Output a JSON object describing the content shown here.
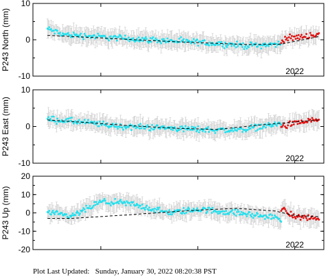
{
  "chart_data": [
    {
      "type": "scatter",
      "ylabel": "P243 North (mm)",
      "ylim": [
        -10,
        10
      ],
      "yticks": [
        -10,
        0,
        10
      ],
      "xlim": [
        2019.3,
        2022.3
      ],
      "xtick_label": "2022",
      "xtick_value": 2022.0,
      "series": [
        {
          "values_desc": "cyan points with grey error bars",
          "x_start": 2019.45,
          "x_end": 2021.86,
          "trend": [
            [
              2019.45,
              3.0
            ],
            [
              2019.6,
              1.5
            ],
            [
              2020.0,
              0.8
            ],
            [
              2020.5,
              0.0
            ],
            [
              2021.0,
              -0.7
            ],
            [
              2021.5,
              -1.6
            ],
            [
              2021.86,
              -1.2
            ]
          ]
        },
        {
          "values_desc": "red points (recent)",
          "x_start": 2021.86,
          "x_end": 2022.25,
          "trend": [
            [
              2021.86,
              0.0
            ],
            [
              2022.0,
              0.6
            ],
            [
              2022.25,
              1.5
            ]
          ]
        }
      ],
      "model": [
        [
          2019.45,
          1.2
        ],
        [
          2020.0,
          0.5
        ],
        [
          2020.5,
          -0.2
        ],
        [
          2021.0,
          -0.8
        ],
        [
          2021.5,
          -1.3
        ],
        [
          2021.86,
          -1.2
        ],
        [
          2022.25,
          0.9
        ]
      ]
    },
    {
      "type": "scatter",
      "ylabel": "P243 East (mm)",
      "ylim": [
        -10,
        10
      ],
      "yticks": [
        -10,
        0,
        10
      ],
      "xlim": [
        2019.3,
        2022.3
      ],
      "xtick_label": "2022",
      "xtick_value": 2022.0,
      "series": [
        {
          "values_desc": "cyan points with grey error bars",
          "x_start": 2019.45,
          "x_end": 2021.86,
          "trend": [
            [
              2019.45,
              2.0
            ],
            [
              2019.8,
              1.2
            ],
            [
              2020.2,
              0.0
            ],
            [
              2020.6,
              -0.3
            ],
            [
              2021.0,
              -0.8
            ],
            [
              2021.4,
              -1.0
            ],
            [
              2021.86,
              0.8
            ]
          ]
        },
        {
          "values_desc": "red points (recent)",
          "x_start": 2021.86,
          "x_end": 2022.25,
          "trend": [
            [
              2021.86,
              0.0
            ],
            [
              2022.0,
              0.8
            ],
            [
              2022.25,
              2.0
            ]
          ]
        }
      ],
      "model": [
        [
          2019.45,
          1.8
        ],
        [
          2019.9,
          1.0
        ],
        [
          2020.3,
          0.2
        ],
        [
          2020.8,
          -0.5
        ],
        [
          2021.2,
          -0.8
        ],
        [
          2021.6,
          0.3
        ],
        [
          2022.25,
          1.8
        ]
      ]
    },
    {
      "type": "scatter",
      "ylabel": "P243 Up (mm)",
      "ylim": [
        -20,
        20
      ],
      "yticks": [
        -20,
        -10,
        0,
        10,
        20
      ],
      "xlim": [
        2019.3,
        2022.3
      ],
      "xtick_label": "2022",
      "xtick_value": 2022.0,
      "series": [
        {
          "values_desc": "cyan points with grey error bars",
          "x_start": 2019.45,
          "x_end": 2021.86,
          "trend": [
            [
              2019.45,
              0.0
            ],
            [
              2019.7,
              -2.0
            ],
            [
              2020.0,
              6.0
            ],
            [
              2020.3,
              5.0
            ],
            [
              2020.7,
              0.0
            ],
            [
              2021.0,
              2.0
            ],
            [
              2021.4,
              0.0
            ],
            [
              2021.86,
              -3.0
            ]
          ]
        },
        {
          "values_desc": "red points (recent)",
          "x_start": 2021.86,
          "x_end": 2022.25,
          "trend": [
            [
              2021.86,
              2.0
            ],
            [
              2022.0,
              -2.0
            ],
            [
              2022.25,
              -3.0
            ]
          ]
        }
      ],
      "model": [
        [
          2019.45,
          -3.0
        ],
        [
          2019.7,
          -3.0
        ],
        [
          2020.0,
          -2.0
        ],
        [
          2020.3,
          -1.0
        ],
        [
          2020.7,
          0.5
        ],
        [
          2021.0,
          1.5
        ],
        [
          2021.4,
          2.5
        ],
        [
          2021.8,
          1.0
        ],
        [
          2022.0,
          -1.5
        ],
        [
          2022.25,
          -2.0
        ]
      ]
    }
  ],
  "footer": {
    "label": "Plot Last Updated:",
    "value": "Sunday, January 30, 2022 08:20:38 PST"
  },
  "colors": {
    "main_points": "#22e0ee",
    "recent_points": "#e01010",
    "error_bars": "#cfcfcf",
    "model_line": "#000000",
    "frame": "#000000"
  }
}
